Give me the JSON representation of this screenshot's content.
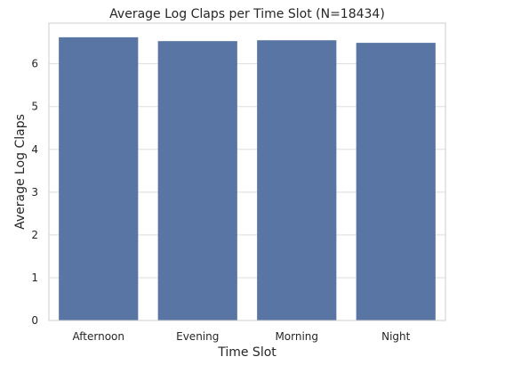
{
  "chart_data": {
    "type": "bar",
    "title": "Average Log Claps per Time Slot (N=18434)",
    "xlabel": "Time Slot",
    "ylabel": "Average Log Claps",
    "categories": [
      "Afternoon",
      "Evening",
      "Morning",
      "Night"
    ],
    "values": [
      6.62,
      6.53,
      6.55,
      6.49
    ],
    "ylim": [
      0,
      6.95
    ],
    "yticks": [
      0,
      1,
      2,
      3,
      4,
      5,
      6
    ],
    "grid": true,
    "legend": "none"
  },
  "colors": {
    "bar": "#5875a4",
    "grid": "#dddddd",
    "axes_edge": "#cccccc",
    "text": "#262626",
    "background": "#ffffff"
  }
}
